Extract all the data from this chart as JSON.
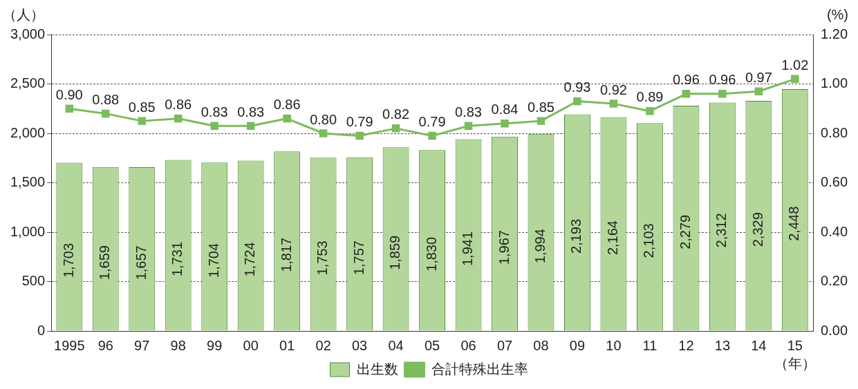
{
  "chart_data": {
    "type": "bar",
    "ylabel": "（人）",
    "y2label": "(%)",
    "xlabel": "（年）",
    "categories": [
      "1995",
      "96",
      "97",
      "98",
      "99",
      "00",
      "01",
      "02",
      "03",
      "04",
      "05",
      "06",
      "07",
      "08",
      "09",
      "10",
      "11",
      "12",
      "13",
      "14",
      "15"
    ],
    "series": [
      {
        "name": "出生数",
        "color": "#b3d79b",
        "values": [
          1703,
          1659,
          1657,
          1731,
          1704,
          1724,
          1817,
          1753,
          1757,
          1859,
          1830,
          1941,
          1967,
          1994,
          2193,
          2164,
          2103,
          2279,
          2312,
          2329,
          2448
        ],
        "value_labels": [
          "1,703",
          "1,659",
          "1,657",
          "1,731",
          "1,704",
          "1,724",
          "1,817",
          "1,753",
          "1,757",
          "1,859",
          "1,830",
          "1,941",
          "1,967",
          "1,994",
          "2,193",
          "2,164",
          "2,103",
          "2,279",
          "2,312",
          "2,329",
          "2,448"
        ]
      },
      {
        "name": "合計特殊出生率",
        "type": "line",
        "axis": "y2",
        "color": "#7cbb5e",
        "marker": "square",
        "values": [
          0.9,
          0.88,
          0.85,
          0.86,
          0.83,
          0.83,
          0.86,
          0.8,
          0.79,
          0.82,
          0.79,
          0.83,
          0.84,
          0.85,
          0.93,
          0.92,
          0.89,
          0.96,
          0.96,
          0.97,
          1.02
        ],
        "value_labels": [
          "0.90",
          "0.88",
          "0.85",
          "0.86",
          "0.83",
          "0.83",
          "0.86",
          "0.80",
          "0.79",
          "0.82",
          "0.79",
          "0.83",
          "0.84",
          "0.85",
          "0.93",
          "0.92",
          "0.89",
          "0.96",
          "0.96",
          "0.97",
          "1.02"
        ]
      }
    ],
    "ylim": [
      0,
      3000
    ],
    "yticks": [
      0,
      {
        "value": 500,
        "label": "500"
      },
      {
        "value": 1000,
        "label": "1,000"
      },
      {
        "value": 1500,
        "label": "1,500"
      },
      {
        "value": 2000,
        "label": "2,000"
      },
      {
        "value": 2500,
        "label": "2,500"
      },
      {
        "value": 3000,
        "label": "3,000"
      }
    ],
    "y2lim": [
      0,
      1.2
    ],
    "y2ticks": [
      {
        "value": 0,
        "label": "0.00"
      },
      {
        "value": 0.2,
        "label": "0.20"
      },
      {
        "value": 0.4,
        "label": "0.40"
      },
      {
        "value": 0.6,
        "label": "0.60"
      },
      {
        "value": 0.8,
        "label": "0.80"
      },
      {
        "value": 1,
        "label": "1.00"
      },
      {
        "value": 1.2,
        "label": "1.20"
      }
    ],
    "grid": "y",
    "legend": "bottom"
  }
}
